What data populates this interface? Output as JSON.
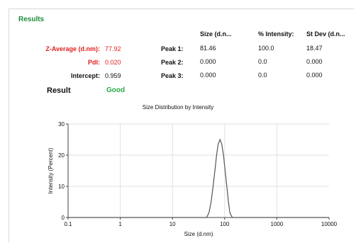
{
  "section_title": "Results",
  "summary": {
    "z_average": {
      "label": "Z-Average (d.nm):",
      "value": "77.92"
    },
    "pdi": {
      "label": "PdI:",
      "value": "0.020"
    },
    "intercept": {
      "label": "Intercept:",
      "value": "0.959"
    },
    "result": {
      "label": "Result",
      "value": "Good"
    }
  },
  "peaks_table": {
    "headers": [
      "Size (d.n...",
      "% Intensity:",
      "St Dev (d.n..."
    ],
    "rows": [
      {
        "label": "Peak 1:",
        "size": "81.46",
        "intensity": "100.0",
        "stdev": "18.47"
      },
      {
        "label": "Peak 2:",
        "size": "0.000",
        "intensity": "0.0",
        "stdev": "0.000"
      },
      {
        "label": "Peak 3:",
        "size": "0.000",
        "intensity": "0.0",
        "stdev": "0.000"
      }
    ]
  },
  "colors": {
    "accent_green": "#1f8a3a",
    "highlight_red": "#e02020",
    "good_green": "#2aa74a",
    "curve": "#555555"
  },
  "chart_data": {
    "type": "line",
    "title": "Size Distribution by Intensity",
    "xlabel": "Size (d.nm)",
    "ylabel": "Intensity (Percent)",
    "x_scale": "log",
    "xlim": [
      0.1,
      10000
    ],
    "ylim": [
      0,
      30
    ],
    "xticks": [
      0.1,
      1,
      10,
      100,
      1000,
      10000
    ],
    "xtick_labels": [
      "0.1",
      "1",
      "10",
      "100",
      "1000",
      "10000"
    ],
    "yticks": [
      0,
      10,
      20,
      30
    ],
    "ytick_labels": [
      "0",
      "10",
      "20",
      "30"
    ],
    "grid": true,
    "series": [
      {
        "x": [
          0.1,
          0.5,
          2,
          10,
          30,
          45,
          50,
          55,
          60,
          65,
          70,
          75,
          81.46,
          88,
          95,
          102,
          110,
          118,
          126,
          140,
          200,
          1000,
          10000
        ],
        "y": [
          0,
          0,
          0,
          0,
          0,
          0,
          1.5,
          5,
          10,
          15,
          20,
          23.5,
          25,
          23.5,
          20,
          15,
          10,
          5,
          1.5,
          0,
          0,
          0,
          0
        ]
      }
    ]
  }
}
